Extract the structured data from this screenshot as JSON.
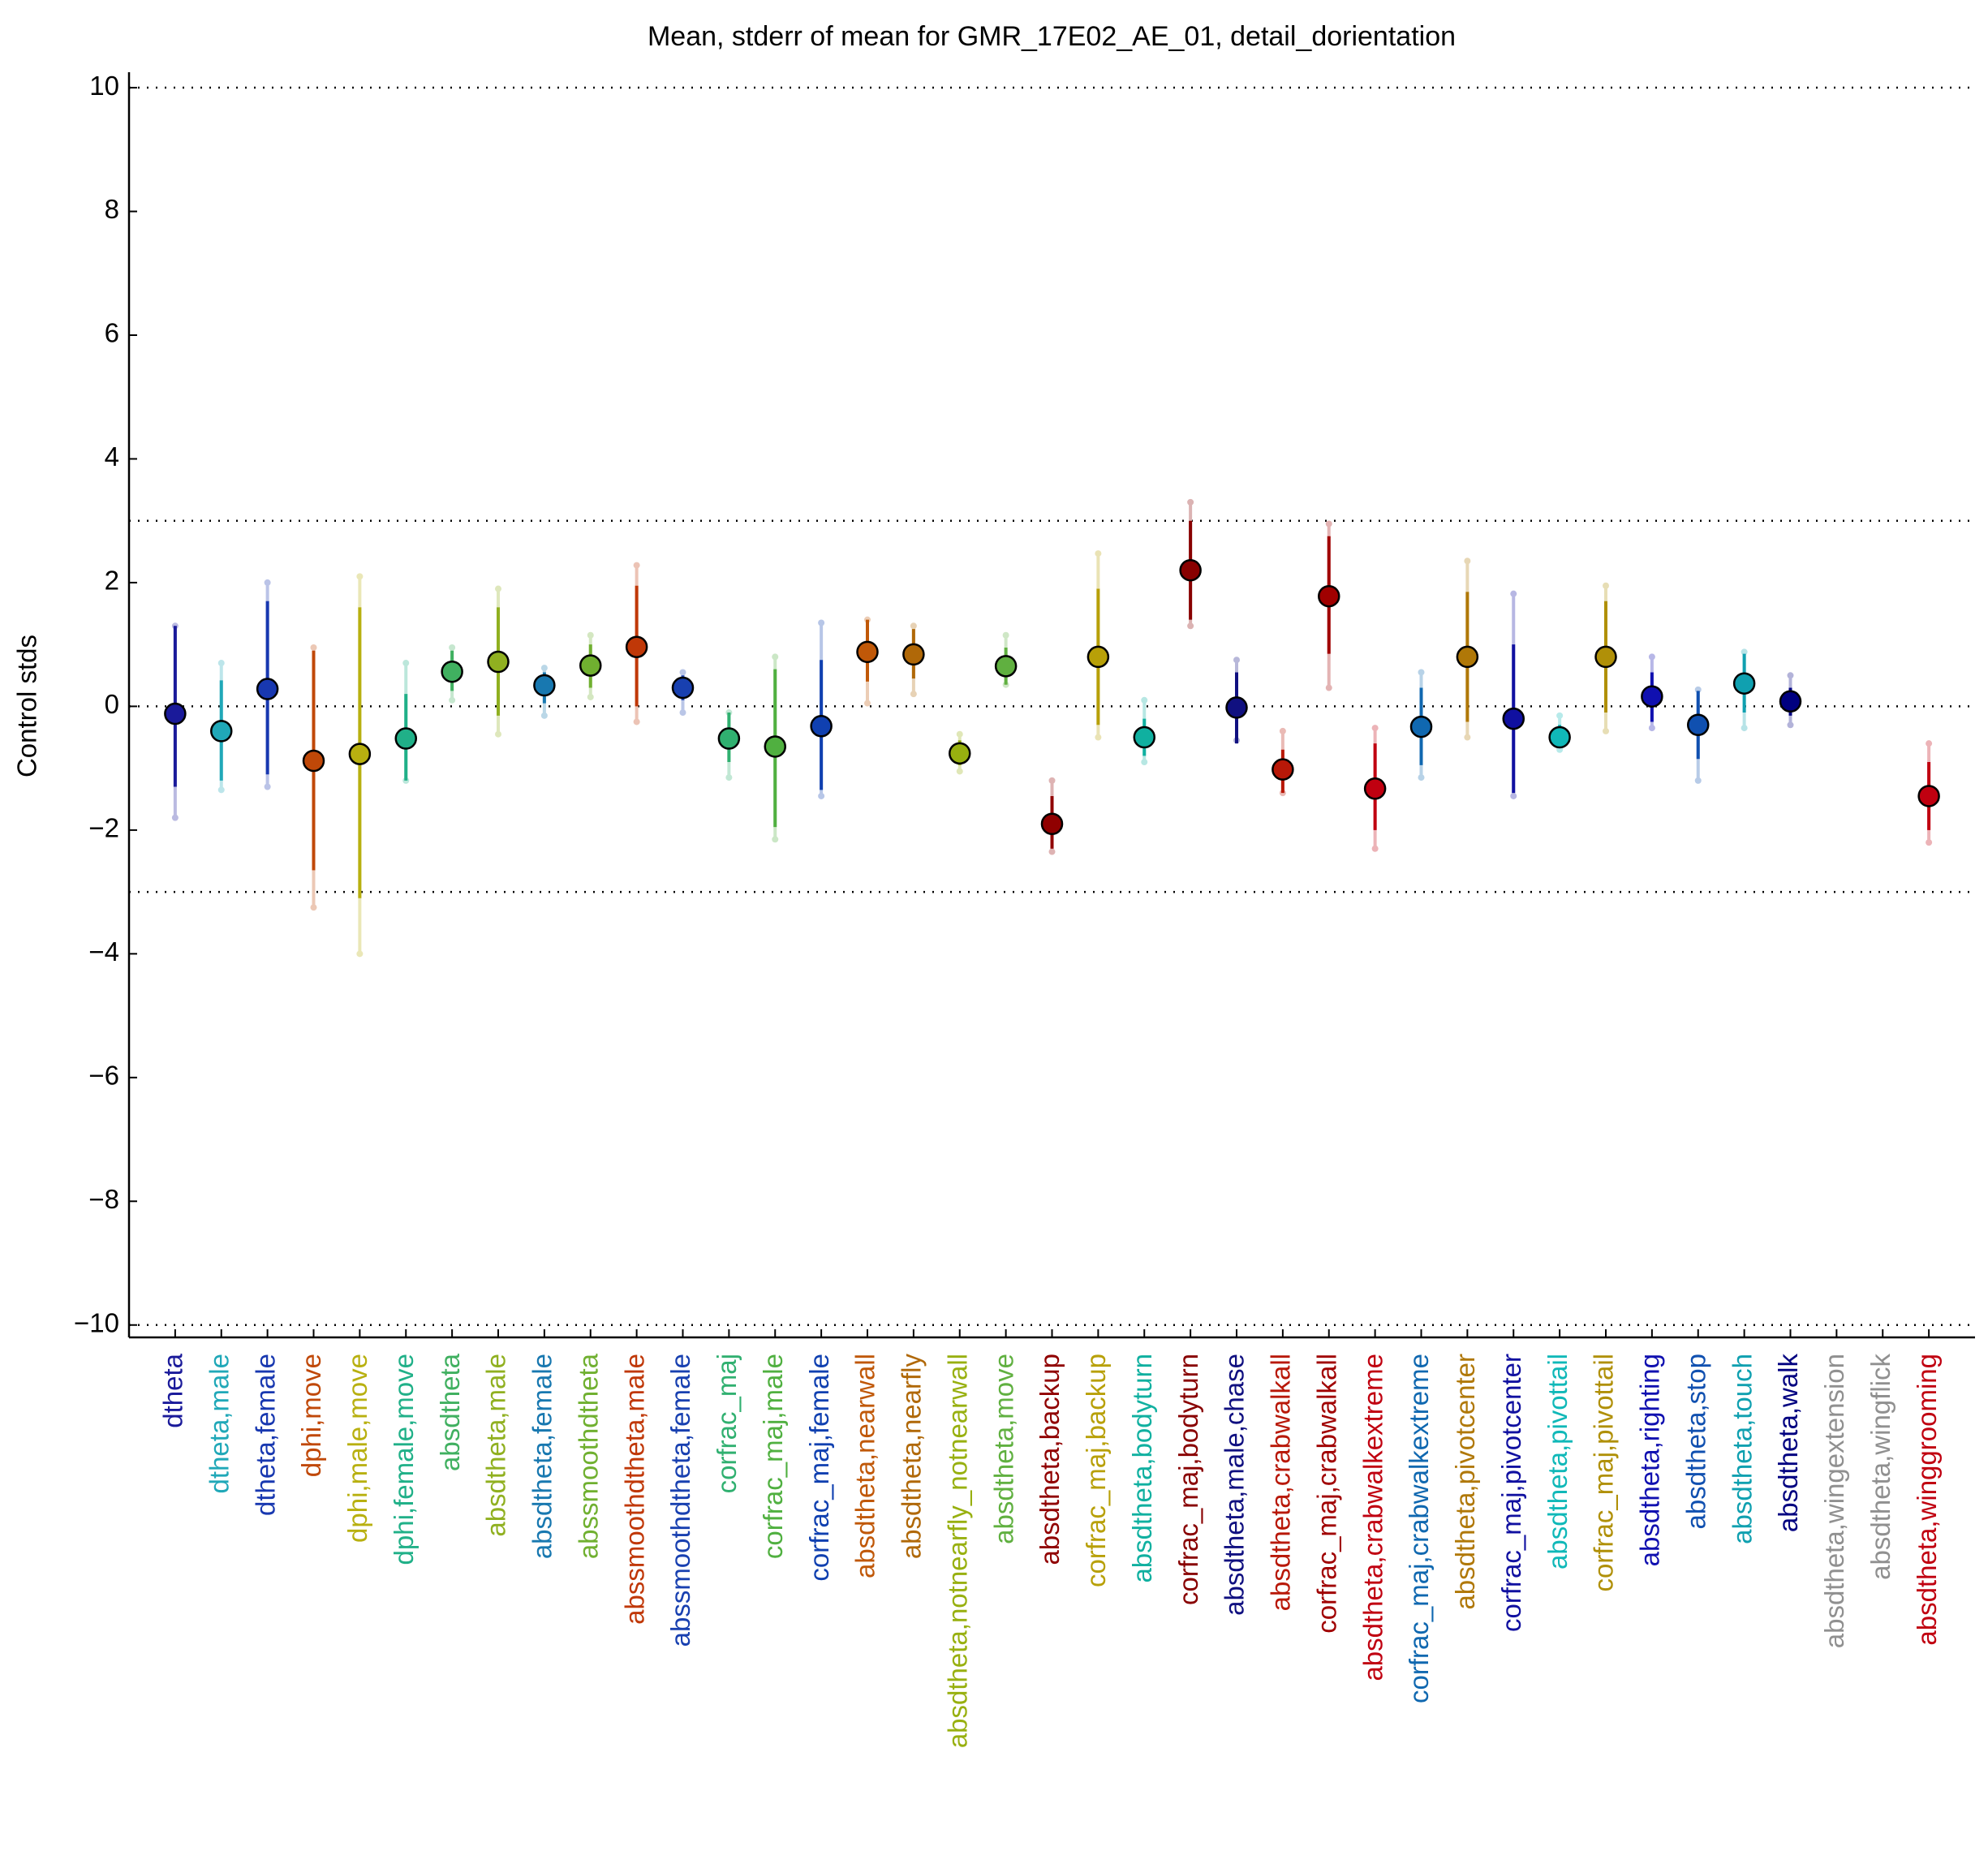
{
  "chart_data": {
    "type": "errorbar",
    "title": "Mean, stderr of mean for GMR_17E02_AE_01, detail_dorientation",
    "ylabel": "Control stds",
    "categories": [
      "dtheta",
      "dtheta,male",
      "dtheta,female",
      "dphi,move",
      "dphi,male,move",
      "dphi,female,move",
      "absdtheta",
      "absdtheta,male",
      "absdtheta,female",
      "abssmoothdtheta",
      "abssmoothdtheta,male",
      "abssmoothdtheta,female",
      "corfrac_maj",
      "corfrac_maj,male",
      "corfrac_maj,female",
      "absdtheta,nearwall",
      "absdtheta,nearfly",
      "absdtheta,notnearfly_notnearwall",
      "absdtheta,move",
      "absdtheta,backup",
      "corfrac_maj,backup",
      "absdtheta,bodyturn",
      "corfrac_maj,bodyturn",
      "absdtheta,male,chase",
      "absdtheta,crabwalkall",
      "corfrac_maj,crabwalkall",
      "absdtheta,crabwalkextreme",
      "corfrac_maj,crabwalkextreme",
      "absdtheta,pivotcenter",
      "corfrac_maj,pivotcenter",
      "absdtheta,pivottail",
      "corfrac_maj,pivottail",
      "absdtheta,righting",
      "absdtheta,stop",
      "absdtheta,touch",
      "absdtheta,walk",
      "absdtheta,wingextension",
      "absdtheta,wingflick",
      "absdtheta,winggrooming"
    ],
    "values": [
      -0.12,
      -0.4,
      0.28,
      -0.88,
      -0.77,
      -0.52,
      0.56,
      0.72,
      0.34,
      0.66,
      0.96,
      0.3,
      -0.52,
      -0.65,
      -0.32,
      0.88,
      0.84,
      -0.76,
      0.65,
      -1.9,
      0.8,
      -0.5,
      2.2,
      -0.02,
      -1.02,
      1.78,
      -1.33,
      -0.33,
      0.8,
      -0.2,
      -0.5,
      0.8,
      0.16,
      -0.3,
      0.37,
      0.08,
      null,
      null,
      -1.45
    ],
    "err_inner": [
      [
        -1.3,
        1.3
      ],
      [
        -1.2,
        0.42
      ],
      [
        -1.1,
        1.7
      ],
      [
        -2.65,
        0.9
      ],
      [
        -3.1,
        1.6
      ],
      [
        -1.2,
        0.2
      ],
      [
        0.25,
        0.9
      ],
      [
        -0.15,
        1.6
      ],
      [
        0.05,
        0.55
      ],
      [
        0.3,
        1.0
      ],
      [
        0,
        1.95
      ],
      [
        0.1,
        0.5
      ],
      [
        -0.9,
        -0.1
      ],
      [
        -1.95,
        0.6
      ],
      [
        -1.35,
        0.75
      ],
      [
        0.4,
        1.4
      ],
      [
        0.45,
        1.25
      ],
      [
        -0.95,
        -0.55
      ],
      [
        0.35,
        0.95
      ],
      [
        -2.3,
        -1.45
      ],
      [
        -0.3,
        1.9
      ],
      [
        -0.8,
        -0.2
      ],
      [
        1.4,
        3.0
      ],
      [
        -0.6,
        0.55
      ],
      [
        -1.4,
        -0.7
      ],
      [
        0.85,
        2.75
      ],
      [
        -2.0,
        -0.6
      ],
      [
        -0.95,
        0.3
      ],
      [
        -0.25,
        1.85
      ],
      [
        -1.4,
        1.0
      ],
      [
        -0.65,
        -0.3
      ],
      [
        -0.1,
        1.7
      ],
      [
        -0.25,
        0.55
      ],
      [
        -0.85,
        0.25
      ],
      [
        -0.1,
        0.85
      ],
      [
        -0.15,
        0.3
      ],
      null,
      null,
      [
        -2.0,
        -0.9
      ]
    ],
    "err_outer": [
      [
        -1.8,
        1.3
      ],
      [
        -1.35,
        0.7
      ],
      [
        -1.3,
        2.0
      ],
      [
        -3.25,
        0.95
      ],
      [
        -4.0,
        2.1
      ],
      [
        -1.2,
        0.7
      ],
      [
        0.1,
        0.95
      ],
      [
        -0.45,
        1.9
      ],
      [
        -0.15,
        0.62
      ],
      [
        0.15,
        1.15
      ],
      [
        -0.25,
        2.28
      ],
      [
        -0.1,
        0.55
      ],
      [
        -1.15,
        -0.1
      ],
      [
        -2.15,
        0.8
      ],
      [
        -1.45,
        1.35
      ],
      [
        0.05,
        1.4
      ],
      [
        0.2,
        1.3
      ],
      [
        -1.05,
        -0.45
      ],
      [
        0.35,
        1.15
      ],
      [
        -2.35,
        -1.2
      ],
      [
        -0.5,
        2.47
      ],
      [
        -0.9,
        0.1
      ],
      [
        1.3,
        3.3
      ],
      [
        -0.55,
        0.75
      ],
      [
        -1.4,
        -0.4
      ],
      [
        0.3,
        2.95
      ],
      [
        -2.3,
        -0.35
      ],
      [
        -1.15,
        0.55
      ],
      [
        -0.5,
        2.35
      ],
      [
        -1.45,
        1.82
      ],
      [
        -0.7,
        -0.15
      ],
      [
        -0.4,
        1.95
      ],
      [
        -0.35,
        0.8
      ],
      [
        -1.2,
        0.27
      ],
      [
        -0.35,
        0.88
      ],
      [
        -0.3,
        0.5
      ],
      null,
      null,
      [
        -2.2,
        -0.6
      ]
    ],
    "colors": [
      "#1a1a9a",
      "#20a8b8",
      "#1838b0",
      "#c04808",
      "#b8b010",
      "#20b088",
      "#40b060",
      "#90b020",
      "#1878b0",
      "#70b030",
      "#c03808",
      "#1840b0",
      "#30b070",
      "#50b040",
      "#1040b0",
      "#c05808",
      "#b06808",
      "#98b010",
      "#60b040",
      "#900000",
      "#b8a008",
      "#10b0a0",
      "#880000",
      "#101080",
      "#b81808",
      "#a00000",
      "#c00010",
      "#1068b0",
      "#b07808",
      "#1010a0",
      "#10b8b8",
      "#b09008",
      "#1010b0",
      "#1050b0",
      "#10a0b0",
      "#000080",
      "#909090",
      "#909090",
      "#c00010"
    ],
    "ylim": [
      -10.2,
      10.25
    ],
    "yticks": [
      {
        "value": -10,
        "label": "−10"
      },
      {
        "value": -8,
        "label": "−8"
      },
      {
        "value": -6,
        "label": "−6"
      },
      {
        "value": -4,
        "label": "−4"
      },
      {
        "value": -2,
        "label": "−2"
      },
      0,
      2,
      4,
      6,
      8,
      10
    ],
    "hlines": [
      10,
      3,
      0,
      -3,
      -10
    ]
  }
}
